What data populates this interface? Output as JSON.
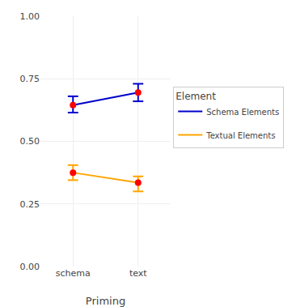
{
  "chart_data": {
    "type": "line",
    "categories": [
      "schema",
      "text"
    ],
    "series": [
      {
        "name": "Schema Elements",
        "color": "#0000CC",
        "values": [
          0.645,
          0.695
        ],
        "ci_lower": [
          0.615,
          0.66
        ],
        "ci_upper": [
          0.68,
          0.73
        ]
      },
      {
        "name": "Textual Elements",
        "color": "#FFA500",
        "values": [
          0.375,
          0.335
        ],
        "ci_lower": [
          0.345,
          0.3
        ],
        "ci_upper": [
          0.405,
          0.36
        ]
      }
    ],
    "color": "#FF0000",
    "xlabel": "Priming",
    "legend_title": "Element",
    "legend": "right",
    "ylim": [
      0.0,
      1.0
    ],
    "yticks": [
      {
        "value": 0.0,
        "label": "0.00"
      },
      {
        "value": 0.25,
        "label": "0.25"
      },
      {
        "value": 0.5,
        "label": "0.50"
      },
      {
        "value": 0.75,
        "label": "0.75"
      },
      {
        "value": 1.0,
        "label": "1.00"
      }
    ],
    "grid": true
  }
}
